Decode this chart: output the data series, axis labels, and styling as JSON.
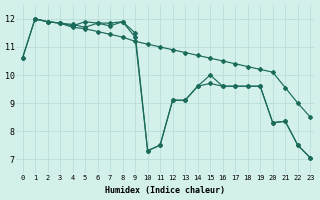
{
  "xlabel": "Humidex (Indice chaleur)",
  "ylabel": "",
  "bg_color": "#d4f0eb",
  "grid_color": "#b8ddd8",
  "line_color": "#1a6b5a",
  "xlim": [
    -0.5,
    23.3
  ],
  "ylim": [
    6.5,
    12.5
  ],
  "yticks": [
    7,
    8,
    9,
    10,
    11,
    12
  ],
  "xticks": [
    0,
    1,
    2,
    3,
    4,
    5,
    6,
    7,
    8,
    9,
    10,
    11,
    12,
    13,
    14,
    15,
    16,
    17,
    18,
    19,
    20,
    21,
    22,
    23
  ],
  "line1_x": [
    0,
    1,
    2,
    3,
    4,
    5,
    6,
    7,
    8,
    9,
    10,
    11,
    12,
    13,
    14,
    15,
    16,
    17,
    18,
    19,
    20,
    21,
    22,
    23
  ],
  "line1_y": [
    10.6,
    12.0,
    11.9,
    11.85,
    11.7,
    11.65,
    11.55,
    11.45,
    11.35,
    11.2,
    11.1,
    11.0,
    10.9,
    10.8,
    10.7,
    10.6,
    10.5,
    10.4,
    10.3,
    10.2,
    10.1,
    9.55,
    9.0,
    8.5
  ],
  "line2_x": [
    1,
    2,
    3,
    4,
    5,
    6,
    7,
    8,
    9,
    10,
    11,
    12,
    13,
    14,
    15,
    16,
    17,
    18,
    19,
    20,
    21,
    22,
    23
  ],
  "line2_y": [
    12.0,
    11.9,
    11.85,
    11.75,
    11.9,
    11.85,
    11.75,
    11.9,
    11.5,
    7.3,
    7.5,
    9.1,
    9.1,
    9.6,
    10.0,
    9.6,
    9.6,
    9.6,
    9.6,
    8.3,
    8.35,
    7.5,
    7.05
  ],
  "line3_x": [
    0,
    1,
    2,
    3,
    4,
    5,
    6,
    7,
    8,
    9,
    10,
    11,
    12,
    13,
    14,
    15,
    16,
    17,
    18,
    19,
    20,
    21,
    22,
    23
  ],
  "line3_y": [
    10.6,
    12.0,
    11.9,
    11.85,
    11.8,
    11.7,
    11.85,
    11.85,
    11.9,
    11.35,
    7.3,
    7.5,
    9.1,
    9.1,
    9.6,
    9.7,
    9.6,
    9.6,
    9.6,
    9.6,
    8.3,
    8.35,
    7.5,
    7.05
  ]
}
